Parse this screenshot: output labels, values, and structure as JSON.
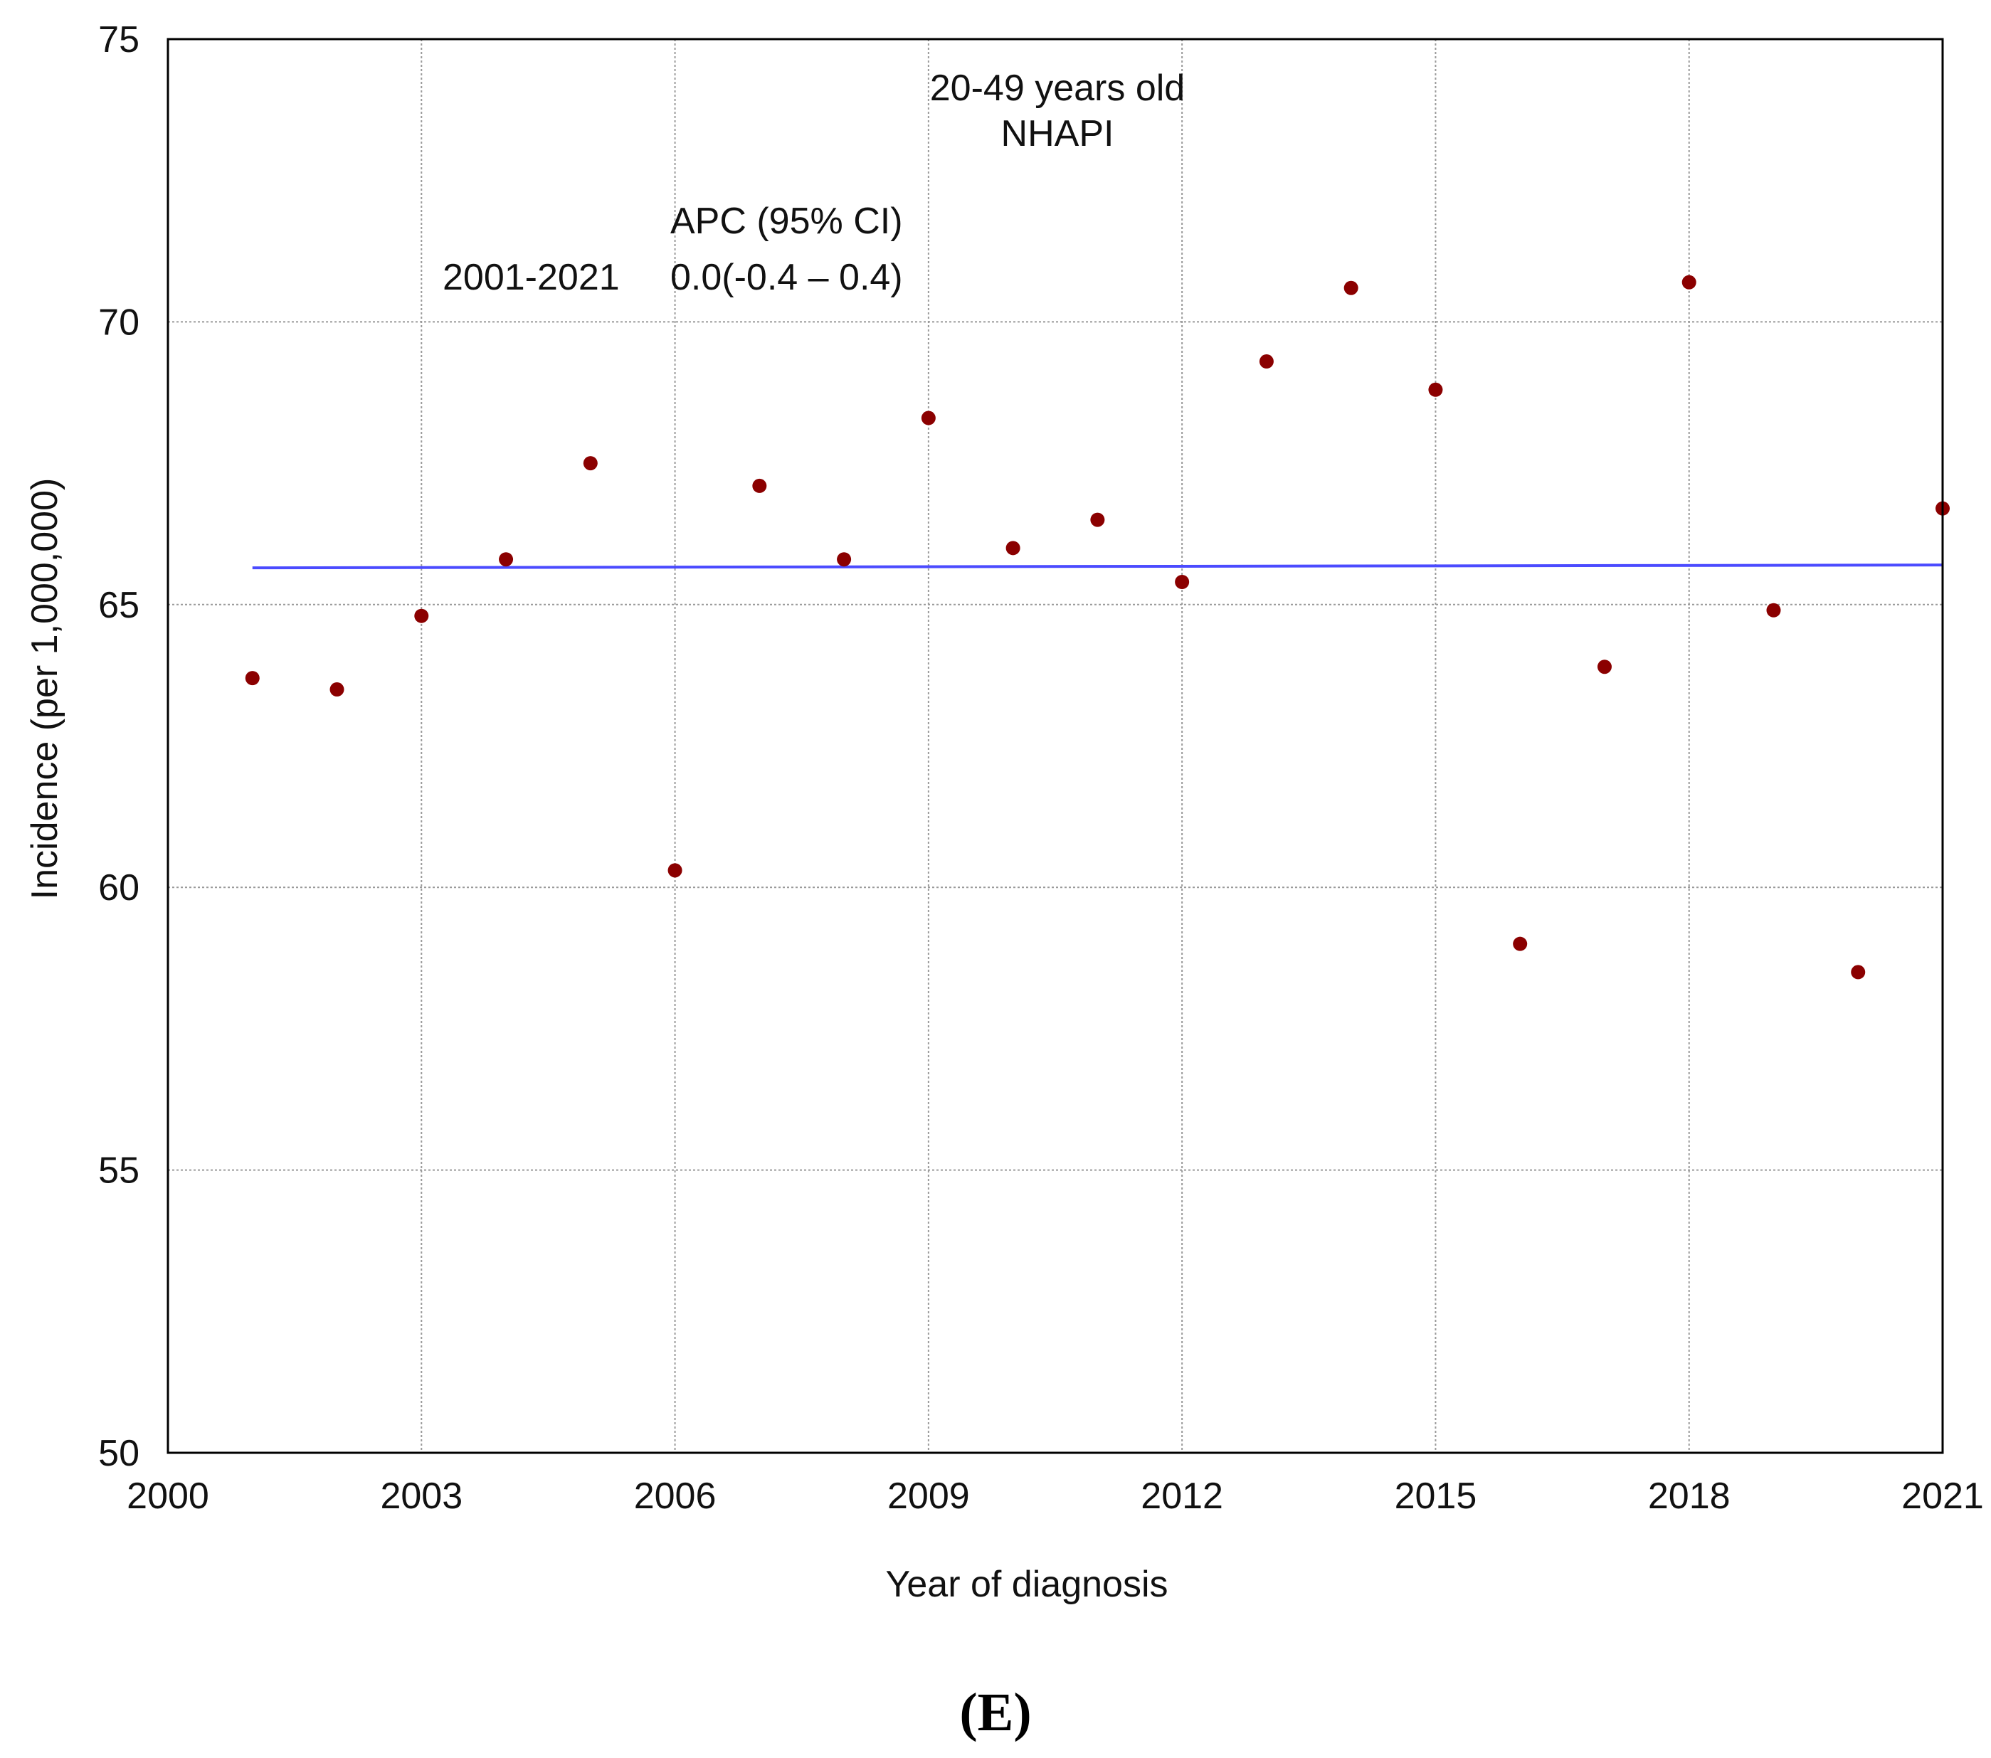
{
  "chart_data": {
    "type": "scatter",
    "title_lines": [
      "20-49 years old",
      "NHAPI"
    ],
    "xlabel": "Year of diagnosis",
    "ylabel": "Incidence (per 1,000,000)",
    "xlim": [
      2000,
      2021
    ],
    "ylim": [
      50,
      75
    ],
    "xticks": [
      "2000",
      "2003",
      "2006",
      "2009",
      "2012",
      "2015",
      "2018",
      "2021"
    ],
    "yticks": [
      "50",
      "55",
      "60",
      "65",
      "70",
      "75"
    ],
    "grid": true,
    "series": [
      {
        "type": "scatter",
        "color": "#8b0000",
        "x": [
          2001,
          2002,
          2003,
          2004,
          2005,
          2006,
          2007,
          2008,
          2009,
          2010,
          2011,
          2012,
          2013,
          2014,
          2015,
          2016,
          2017,
          2018,
          2019,
          2020,
          2021
        ],
        "y": [
          63.7,
          63.5,
          64.8,
          65.8,
          67.5,
          60.3,
          67.1,
          65.8,
          68.3,
          66.0,
          66.5,
          65.4,
          69.3,
          70.6,
          68.8,
          59.0,
          63.9,
          70.7,
          64.9,
          58.5,
          66.7
        ]
      },
      {
        "type": "line",
        "color": "#4b4bff",
        "x": [
          2001,
          2021
        ],
        "y": [
          65.65,
          65.7
        ]
      }
    ],
    "annotations": {
      "apc_header": "APC (95% CI)",
      "period": "2001-2021",
      "apc_value": "0.0(-0.4 – 0.4)"
    }
  },
  "panel_label": "(E)"
}
